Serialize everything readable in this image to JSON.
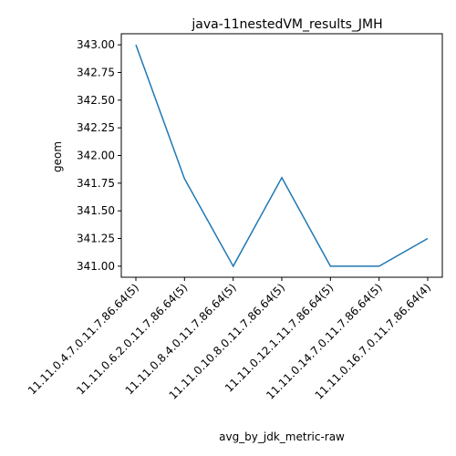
{
  "chart_data": {
    "type": "line",
    "title": "java-11nestedVM_results_JMH",
    "xlabel": "avg_by_jdk_metric-raw",
    "ylabel": "geom",
    "categories": [
      "11.11.0.4.7.0.11.7.86.64(5)",
      "11.11.0.6.2.0.11.7.86.64(5)",
      "11.11.0.8.4.0.11.7.86.64(5)",
      "11.11.0.10.8.0.11.7.86.64(5)",
      "11.11.0.12.1.11.7.86.64(5)",
      "11.11.0.14.7.0.11.7.86.64(5)",
      "11.11.0.16.7.0.11.7.86.64(4)"
    ],
    "series": [
      {
        "values": [
          343.0,
          341.79,
          341.0,
          341.8,
          341.0,
          341.0,
          341.25
        ]
      }
    ],
    "yticks": [
      "341.00",
      "341.25",
      "341.50",
      "341.75",
      "342.00",
      "342.25",
      "342.50",
      "342.75",
      "343.00"
    ],
    "ylim": [
      340.9,
      343.1
    ],
    "grid": false,
    "colors": {
      "line": "#1f77b4",
      "axis": "#000000"
    }
  }
}
